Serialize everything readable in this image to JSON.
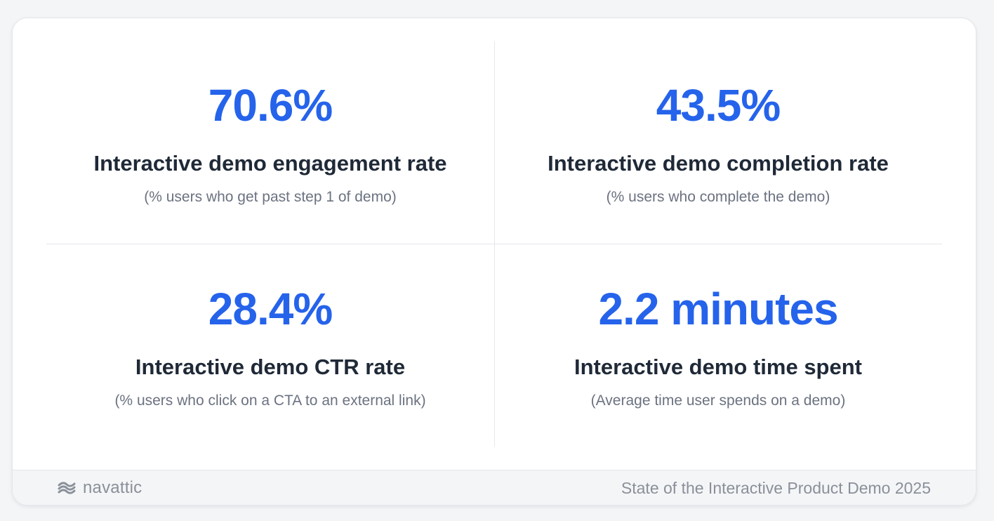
{
  "stats": [
    {
      "value": "70.6%",
      "label": "Interactive demo engagement rate",
      "note": "(% users who get past step 1 of demo)"
    },
    {
      "value": "43.5%",
      "label": "Interactive demo completion rate",
      "note": "(% users who complete the demo)"
    },
    {
      "value": "28.4%",
      "label": "Interactive demo CTR rate",
      "note": "(% users who click on a CTA to an external link)"
    },
    {
      "value": "2.2 minutes",
      "label": "Interactive demo time spent",
      "note": "(Average time user spends on a demo)"
    }
  ],
  "footer": {
    "brand_name": "navattic",
    "brand_icon": "navattic-logo-icon",
    "report_title": "State of the Interactive Product Demo 2025"
  },
  "colors": {
    "accent": "#2563eb",
    "label": "#1f2937",
    "note": "#6b7280",
    "footer_text": "#8a9099"
  }
}
